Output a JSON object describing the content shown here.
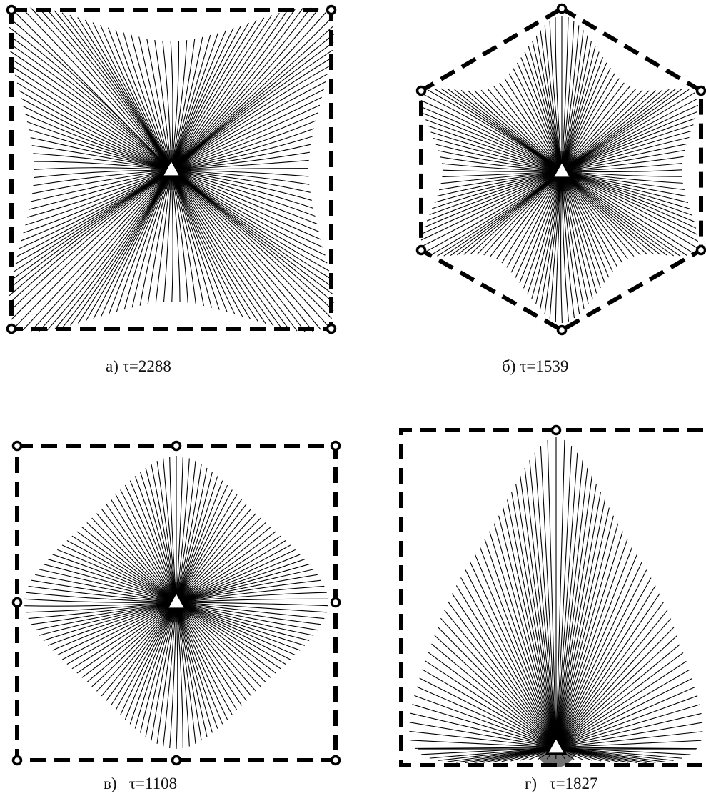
{
  "panels": [
    {
      "id": "a",
      "label": "а)",
      "tau_text": "τ=2288",
      "shape": "square",
      "lines": 160
    },
    {
      "id": "b",
      "label": "б)",
      "tau_text": "τ=1539",
      "shape": "hexagon",
      "lines": 150
    },
    {
      "id": "v",
      "label": "в)",
      "tau_text": "τ=1108",
      "shape": "square-8",
      "lines": 130
    },
    {
      "id": "g",
      "label": "г)",
      "tau_text": "τ=1827",
      "shape": "teardrop",
      "lines": 110
    }
  ],
  "colors": {
    "lines": "#000000",
    "border": "#000000",
    "marker_fill": "#ffffff",
    "background": "#ffffff"
  },
  "icons": {
    "node": "open-circle-node-icon",
    "source": "triangle-source-icon"
  }
}
